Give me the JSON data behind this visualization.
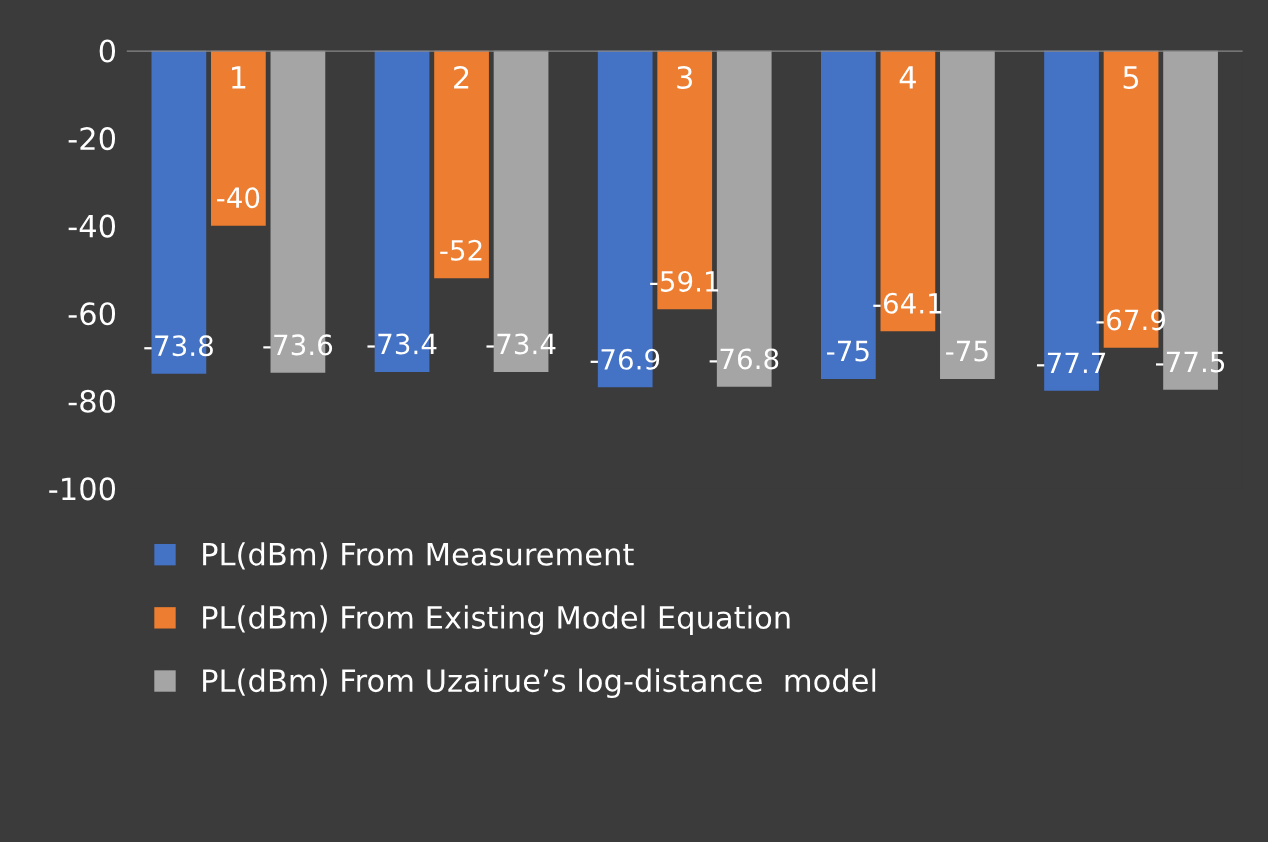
{
  "chart_data": {
    "type": "bar",
    "categories": [
      "1",
      "2",
      "3",
      "4",
      "5"
    ],
    "series": [
      {
        "name": "PL(dBm) From Measurement",
        "color": "#4472c4",
        "values": [
          -73.8,
          -73.4,
          -76.9,
          -75,
          -77.7
        ]
      },
      {
        "name": "PL(dBm) From Existing Model Equation",
        "color": "#ed7d31",
        "values": [
          -40,
          -52,
          -59.1,
          -64.1,
          -67.9
        ]
      },
      {
        "name": "PL(dBm) From Uzairue’s log-distance  model",
        "color": "#a5a5a5",
        "values": [
          -73.6,
          -73.4,
          -76.8,
          -75,
          -77.5
        ]
      }
    ],
    "ylim": [
      -100,
      0
    ],
    "yticks": [
      0,
      -20,
      -40,
      -60,
      -80,
      -100
    ],
    "grid": false,
    "legend": "bottom",
    "data_labels": true
  }
}
